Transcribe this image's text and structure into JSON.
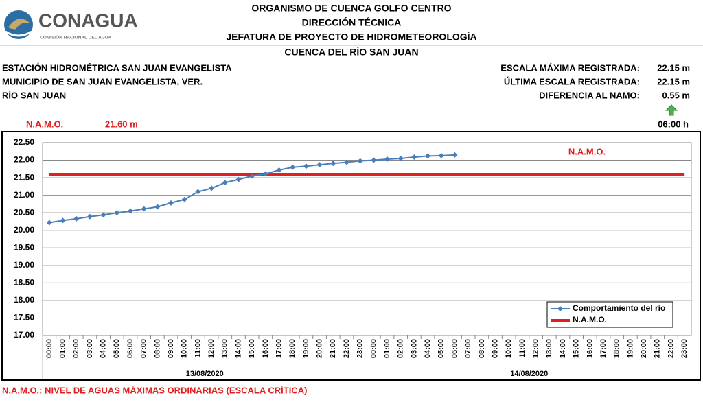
{
  "header": {
    "logo": "CONAGUA",
    "logo_subtitle": "COMISIÓN NACIONAL DEL AGUA",
    "titles": [
      "ORGANISMO DE CUENCA GOLFO CENTRO",
      "DIRECCIÓN TÉCNICA",
      "JEFATURA DE PROYECTO DE HIDROMETEOROLOGÍA",
      "CUENCA DEL RÍO SAN JUAN"
    ],
    "station": [
      "ESTACIÓN HIDROMÉTRICA SAN JUAN EVANGELISTA",
      "MUNICIPIO DE SAN JUAN EVANGELISTA, VER.",
      "RÍO SAN JUAN"
    ],
    "stats": [
      {
        "label": "ESCALA MÁXIMA REGISTRADA:",
        "value": "22.15 m"
      },
      {
        "label": "ÚLTIMA ESCALA REGISTRADA:",
        "value": "22.15 m"
      },
      {
        "label": "DIFERENCIA AL NAMO:",
        "value": "0.55 m"
      }
    ],
    "namo_label": "N.A.M.O.",
    "namo_value": "21.60 m",
    "time": "06:00 h"
  },
  "chart_data": {
    "type": "line",
    "categories": [
      "00:00",
      "01:00",
      "02:00",
      "03:00",
      "04:00",
      "05:00",
      "06:00",
      "07:00",
      "08:00",
      "09:00",
      "10:00",
      "11:00",
      "12:00",
      "13:00",
      "14:00",
      "15:00",
      "16:00",
      "17:00",
      "18:00",
      "19:00",
      "20:00",
      "21:00",
      "22:00",
      "23:00",
      "00:00",
      "01:00",
      "02:00",
      "03:00",
      "04:00",
      "05:00",
      "06:00",
      "07:00",
      "08:00",
      "09:00",
      "10:00",
      "11:00",
      "12:00",
      "13:00",
      "14:00",
      "15:00",
      "16:00",
      "17:00",
      "18:00",
      "19:00",
      "20:00",
      "21:00",
      "22:00",
      "23:00"
    ],
    "dates": [
      "13/08/2020",
      "14/08/2020"
    ],
    "series": [
      {
        "name": "Comportamiento del río",
        "color": "#4a7ebb",
        "values": [
          20.22,
          20.28,
          20.33,
          20.39,
          20.44,
          20.5,
          20.55,
          20.61,
          20.67,
          20.78,
          20.88,
          21.1,
          21.2,
          21.36,
          21.45,
          21.55,
          21.61,
          21.72,
          21.8,
          21.83,
          21.87,
          21.91,
          21.94,
          21.98,
          22.0,
          22.03,
          22.05,
          22.09,
          22.12,
          22.13,
          22.15,
          null,
          null,
          null,
          null,
          null,
          null,
          null,
          null,
          null,
          null,
          null,
          null,
          null,
          null,
          null,
          null,
          null
        ]
      },
      {
        "name": "N.A.M.O.",
        "color": "#e02020",
        "values": [
          21.6,
          21.6,
          21.6,
          21.6,
          21.6,
          21.6,
          21.6,
          21.6,
          21.6,
          21.6,
          21.6,
          21.6,
          21.6,
          21.6,
          21.6,
          21.6,
          21.6,
          21.6,
          21.6,
          21.6,
          21.6,
          21.6,
          21.6,
          21.6,
          21.6,
          21.6,
          21.6,
          21.6,
          21.6,
          21.6,
          21.6,
          21.6,
          21.6,
          21.6,
          21.6,
          21.6,
          21.6,
          21.6,
          21.6,
          21.6,
          21.6,
          21.6,
          21.6,
          21.6,
          21.6,
          21.6,
          21.6,
          21.6
        ]
      }
    ],
    "annotation": "N.A.M.O.",
    "ylim": [
      17,
      22.5
    ],
    "yticks": [
      {
        "value": 17,
        "label": "17.00"
      },
      {
        "value": 17.5,
        "label": "17.50"
      },
      {
        "value": 18,
        "label": "18.00"
      },
      {
        "value": 18.5,
        "label": "18.50"
      },
      {
        "value": 19,
        "label": "19.00"
      },
      {
        "value": 19.5,
        "label": "19.50"
      },
      {
        "value": 20,
        "label": "20.00"
      },
      {
        "value": 20.5,
        "label": "20.50"
      },
      {
        "value": 21,
        "label": "21.00"
      },
      {
        "value": 21.5,
        "label": "21.50"
      },
      {
        "value": 22,
        "label": "22.00"
      },
      {
        "value": 22.5,
        "label": "22.50"
      }
    ],
    "grid": true,
    "legend": "lower right"
  },
  "footer": "N.A.M.O.: NIVEL DE AGUAS MÁXIMAS ORDINARIAS (ESCALA CRÍTICA)"
}
